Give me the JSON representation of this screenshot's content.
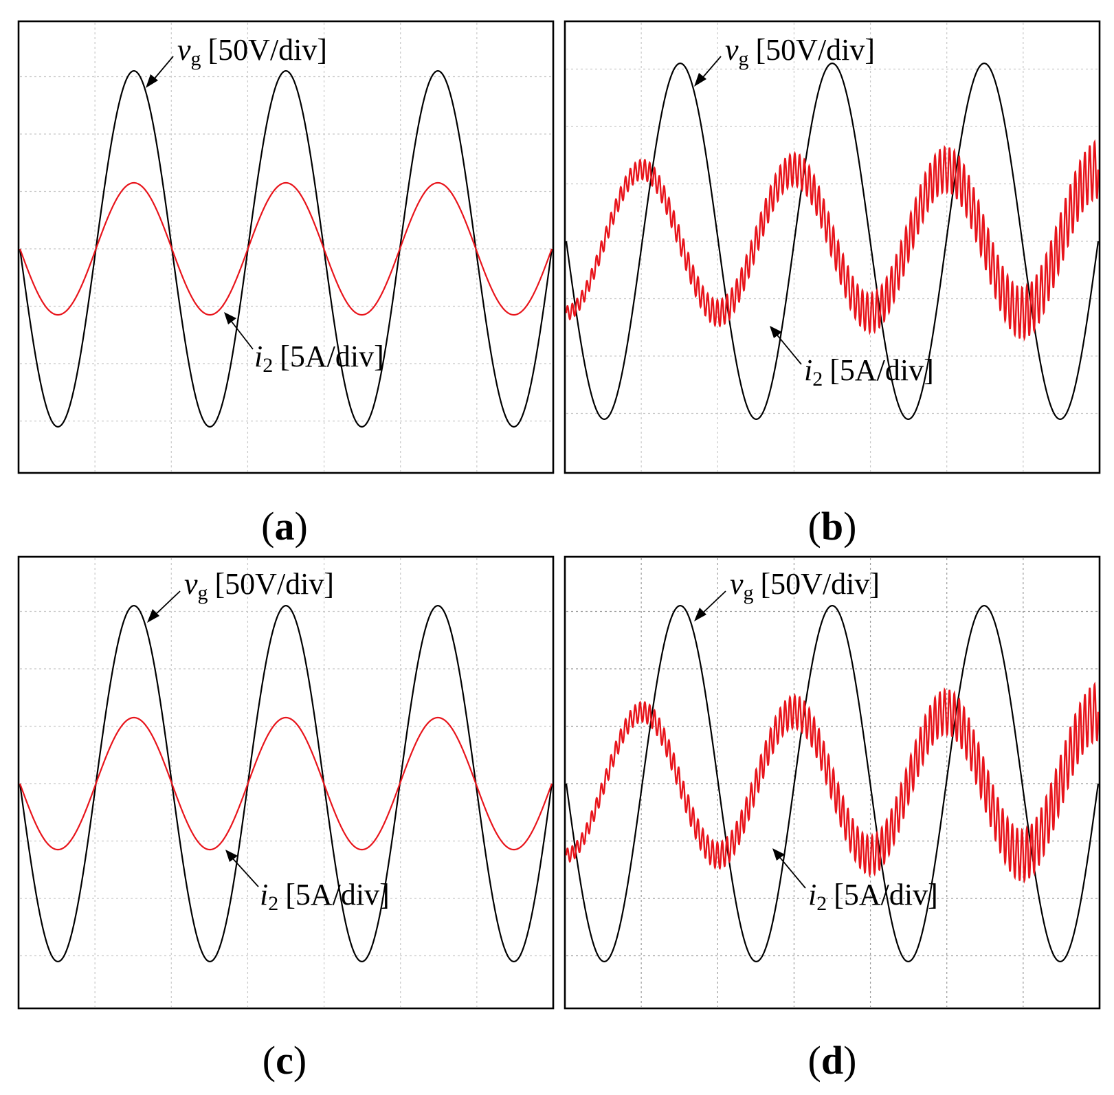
{
  "chart_data": [
    {
      "type": "line",
      "panel": "a",
      "caption_letter": "a",
      "grid": "light",
      "ripple": false,
      "series": [
        {
          "name": "v_g",
          "label_var": "v",
          "label_sub": "g",
          "label_unit": "[50V/div]",
          "color": "#000000",
          "amplitude_div": 3.1,
          "cycles": 3.5,
          "phase": "-sin"
        },
        {
          "name": "i_2",
          "label_var": "i",
          "label_sub": "2",
          "label_unit": "[5A/div]",
          "color": "#e8141b",
          "amplitude_div": 1.15,
          "cycles": 3.5,
          "phase": "-sin"
        }
      ]
    },
    {
      "type": "line",
      "panel": "b",
      "caption_letter": "b",
      "grid": "light",
      "ripple": true,
      "series": [
        {
          "name": "v_g",
          "label_var": "v",
          "label_sub": "g",
          "label_unit": "[50V/div]",
          "color": "#000000",
          "amplitude_div": 3.1,
          "cycles": 3.5,
          "phase": "-sin"
        },
        {
          "name": "i_2",
          "label_var": "i",
          "label_sub": "2",
          "label_unit": "[5A/div]",
          "color": "#e8141b",
          "amplitude_div": 1.25,
          "ripple_start_div": 0.12,
          "ripple_end_div": 0.5,
          "cycles": 3.5,
          "phase": "-cos"
        }
      ]
    },
    {
      "type": "line",
      "panel": "c",
      "caption_letter": "c",
      "grid": "light",
      "ripple": false,
      "series": [
        {
          "name": "v_g",
          "label_var": "v",
          "label_sub": "g",
          "label_unit": "[50V/div]",
          "color": "#000000",
          "amplitude_div": 3.1,
          "cycles": 3.5,
          "phase": "-sin"
        },
        {
          "name": "i_2",
          "label_var": "i",
          "label_sub": "2",
          "label_unit": "[5A/div]",
          "color": "#e8141b",
          "amplitude_div": 1.15,
          "cycles": 3.5,
          "phase": "-sin"
        }
      ]
    },
    {
      "type": "line",
      "panel": "d",
      "caption_letter": "d",
      "grid": "dark",
      "ripple": true,
      "series": [
        {
          "name": "v_g",
          "label_var": "v",
          "label_sub": "g",
          "label_unit": "[50V/div]",
          "color": "#000000",
          "amplitude_div": 3.1,
          "cycles": 3.5,
          "phase": "-sin"
        },
        {
          "name": "i_2",
          "label_var": "i",
          "label_sub": "2",
          "label_unit": "[5A/div]",
          "color": "#e8141b",
          "amplitude_div": 1.25,
          "ripple_start_div": 0.12,
          "ripple_end_div": 0.5,
          "cycles": 3.5,
          "phase": "-cos"
        }
      ]
    }
  ]
}
